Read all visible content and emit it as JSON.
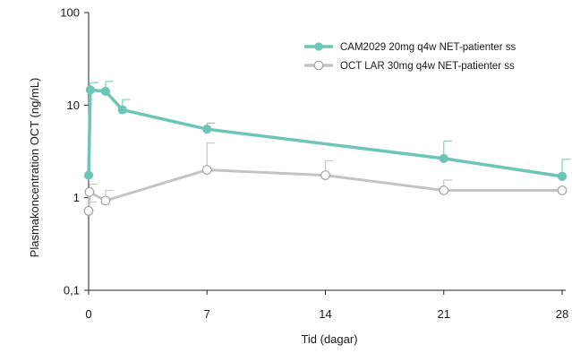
{
  "chart_data": {
    "type": "line",
    "title": "",
    "xlabel": "Tid (dagar)",
    "ylabel": "Plasmakoncentration OCT  (ng/mL)",
    "yscale": "log",
    "ylim": [
      0.1,
      100
    ],
    "xlim": [
      0,
      28
    ],
    "x_ticks": [
      0,
      7,
      14,
      21,
      28
    ],
    "x_tick_labels": [
      "0",
      "7",
      "14",
      "21",
      "28"
    ],
    "y_ticks": [
      0.1,
      1,
      10,
      100
    ],
    "y_tick_labels": [
      "0,1",
      "1",
      "10",
      "100"
    ],
    "legend_position": "top-right",
    "series": [
      {
        "name": "CAM2029 20mg q4w NET-patienter ss",
        "color": "#6dc5b5",
        "marker": "filled-circle",
        "x": [
          0,
          0.1,
          1,
          2,
          7,
          21,
          28
        ],
        "y": [
          1.75,
          14.6,
          14.1,
          8.9,
          5.5,
          2.65,
          1.7
        ],
        "error_upper": [
          null,
          17.5,
          18,
          11.5,
          6.4,
          4.1,
          2.6
        ]
      },
      {
        "name": "OCT LAR 30mg q4w NET-patienter ss",
        "color": "#c4c4c4",
        "marker": "open-circle",
        "x": [
          0,
          0.05,
          1,
          7,
          14,
          21,
          28
        ],
        "y": [
          0.72,
          1.15,
          0.93,
          2.0,
          1.75,
          1.2,
          1.2
        ],
        "error_upper": [
          0.9,
          1.4,
          1.2,
          3.9,
          2.5,
          1.55,
          null
        ]
      }
    ]
  }
}
